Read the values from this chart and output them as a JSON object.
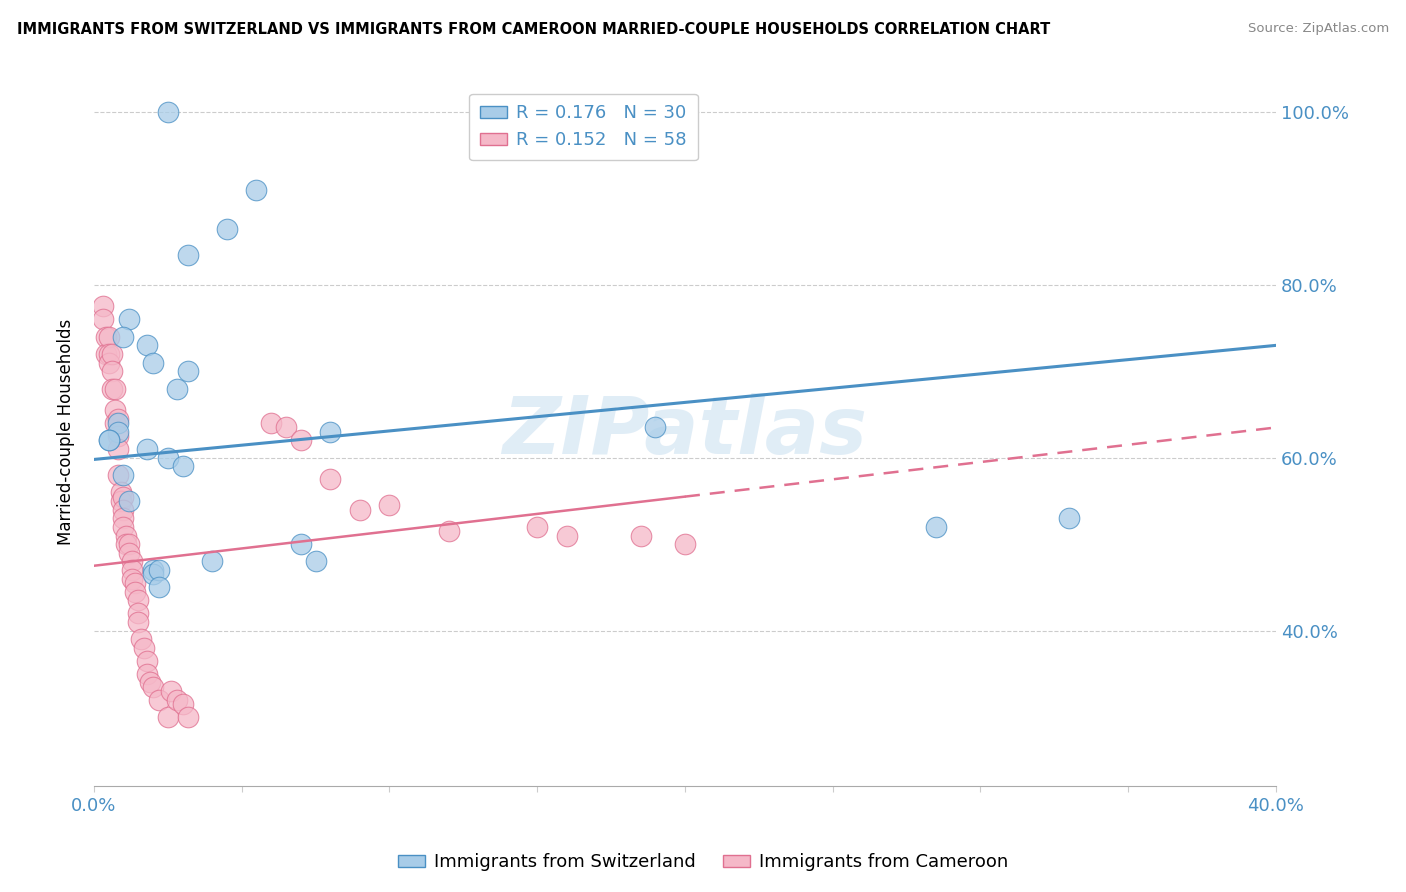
{
  "title": "IMMIGRANTS FROM SWITZERLAND VS IMMIGRANTS FROM CAMEROON MARRIED-COUPLE HOUSEHOLDS CORRELATION CHART",
  "source": "Source: ZipAtlas.com",
  "ylabel": "Married-couple Households",
  "xlim": [
    0.0,
    0.4
  ],
  "ylim": [
    0.22,
    1.04
  ],
  "yticks": [
    0.4,
    0.6,
    0.8,
    1.0
  ],
  "ytick_labels": [
    "40.0%",
    "60.0%",
    "80.0%",
    "100.0%"
  ],
  "xticks": [
    0.0,
    0.05,
    0.1,
    0.15,
    0.2,
    0.25,
    0.3,
    0.35,
    0.4
  ],
  "xtick_labels": [
    "0.0%",
    "",
    "",
    "",
    "",
    "",
    "",
    "",
    "40.0%"
  ],
  "blue_R": 0.176,
  "blue_N": 30,
  "pink_R": 0.152,
  "pink_N": 58,
  "blue_color": "#a8cce8",
  "pink_color": "#f5b8c8",
  "blue_line_color": "#4a90c4",
  "pink_line_color": "#e07090",
  "watermark": "ZIPatlas",
  "legend_blue_label": "Immigrants from Switzerland",
  "legend_pink_label": "Immigrants from Cameroon",
  "blue_scatter_x": [
    0.025,
    0.055,
    0.045,
    0.032,
    0.012,
    0.01,
    0.018,
    0.02,
    0.008,
    0.008,
    0.005,
    0.005,
    0.018,
    0.025,
    0.03,
    0.07,
    0.075,
    0.04,
    0.02,
    0.02,
    0.022,
    0.022,
    0.19,
    0.33,
    0.285,
    0.01,
    0.028,
    0.032,
    0.012,
    0.08
  ],
  "blue_scatter_y": [
    1.0,
    0.91,
    0.865,
    0.835,
    0.76,
    0.74,
    0.73,
    0.71,
    0.64,
    0.63,
    0.62,
    0.62,
    0.61,
    0.6,
    0.59,
    0.5,
    0.48,
    0.48,
    0.47,
    0.465,
    0.47,
    0.45,
    0.635,
    0.53,
    0.52,
    0.58,
    0.68,
    0.7,
    0.55,
    0.63
  ],
  "pink_scatter_x": [
    0.003,
    0.003,
    0.004,
    0.004,
    0.005,
    0.005,
    0.005,
    0.006,
    0.006,
    0.006,
    0.007,
    0.007,
    0.007,
    0.008,
    0.008,
    0.008,
    0.008,
    0.009,
    0.009,
    0.01,
    0.01,
    0.01,
    0.01,
    0.011,
    0.011,
    0.012,
    0.012,
    0.013,
    0.013,
    0.013,
    0.014,
    0.014,
    0.015,
    0.015,
    0.015,
    0.016,
    0.017,
    0.018,
    0.018,
    0.019,
    0.02,
    0.022,
    0.025,
    0.026,
    0.028,
    0.03,
    0.032,
    0.06,
    0.065,
    0.07,
    0.08,
    0.09,
    0.1,
    0.12,
    0.15,
    0.16,
    0.185,
    0.2
  ],
  "pink_scatter_y": [
    0.775,
    0.76,
    0.74,
    0.72,
    0.74,
    0.72,
    0.71,
    0.72,
    0.7,
    0.68,
    0.68,
    0.655,
    0.64,
    0.645,
    0.625,
    0.61,
    0.58,
    0.56,
    0.55,
    0.555,
    0.54,
    0.53,
    0.52,
    0.51,
    0.5,
    0.5,
    0.49,
    0.48,
    0.47,
    0.46,
    0.455,
    0.445,
    0.435,
    0.42,
    0.41,
    0.39,
    0.38,
    0.365,
    0.35,
    0.34,
    0.335,
    0.32,
    0.3,
    0.33,
    0.32,
    0.315,
    0.3,
    0.64,
    0.635,
    0.62,
    0.575,
    0.54,
    0.545,
    0.515,
    0.52,
    0.51,
    0.51,
    0.5
  ],
  "blue_line_x0": 0.0,
  "blue_line_x1": 0.4,
  "blue_line_y0": 0.598,
  "blue_line_y1": 0.73,
  "pink_line_x0": 0.0,
  "pink_line_x1": 0.2,
  "pink_line_y0": 0.475,
  "pink_line_y1": 0.555
}
